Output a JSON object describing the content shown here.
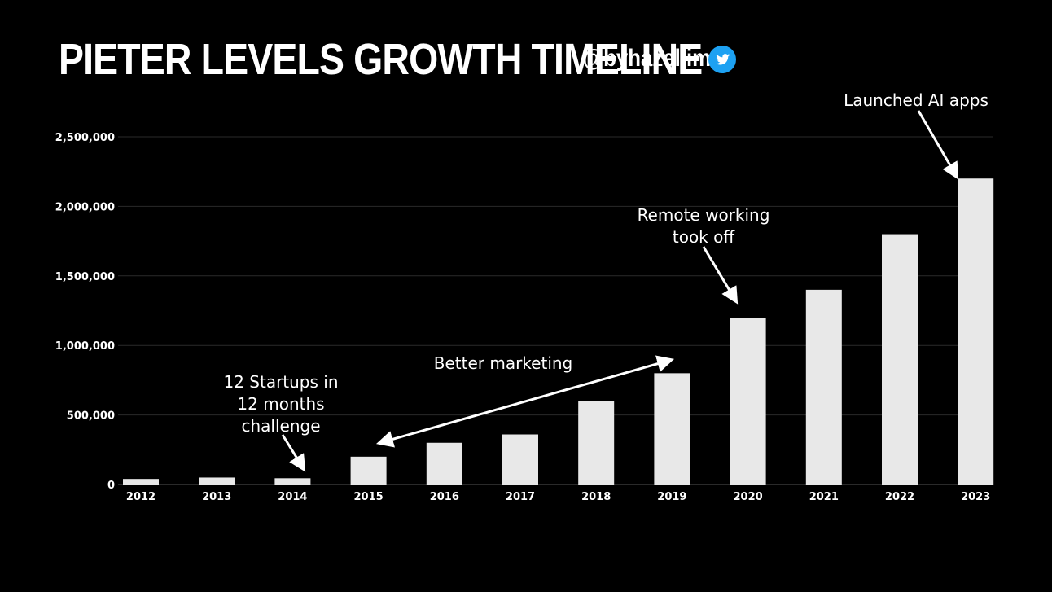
{
  "header": {
    "title": "PIETER LEVELS GROWTH TIMELINE",
    "handle": "@byhazellim",
    "social_icon": "twitter-bird-icon",
    "social_color": "#1DA1F2"
  },
  "colors": {
    "background": "#000000",
    "bar": "#E8E8E8",
    "text": "#FFFFFF",
    "grid": "#2a2a2a"
  },
  "chart_data": {
    "type": "bar",
    "title": "PIETER LEVELS GROWTH TIMELINE",
    "xlabel": "",
    "ylabel": "",
    "categories": [
      "2012",
      "2013",
      "2014",
      "2015",
      "2016",
      "2017",
      "2018",
      "2019",
      "2020",
      "2021",
      "2022",
      "2023"
    ],
    "values": [
      40000,
      50000,
      45000,
      200000,
      300000,
      360000,
      600000,
      800000,
      1200000,
      1400000,
      1800000,
      2200000
    ],
    "ylim": [
      0,
      2500000
    ],
    "yticks": [
      0,
      500000,
      1000000,
      1500000,
      2000000,
      2500000
    ],
    "ytick_labels": [
      "0",
      "500,000",
      "1,000,000",
      "1,500,000",
      "2,000,000",
      "2,500,000"
    ],
    "grid": true,
    "legend": "none",
    "annotations": [
      {
        "id": "startups",
        "lines": [
          "12 Startups in",
          "12 months",
          "challenge"
        ],
        "target": "2014"
      },
      {
        "id": "marketing",
        "lines": [
          "Better marketing"
        ],
        "range": [
          "2015",
          "2019"
        ]
      },
      {
        "id": "remote",
        "lines": [
          "Remote working",
          "took off"
        ],
        "target": "2020"
      },
      {
        "id": "ai",
        "lines": [
          "Launched AI apps"
        ],
        "target": "2023"
      }
    ]
  }
}
